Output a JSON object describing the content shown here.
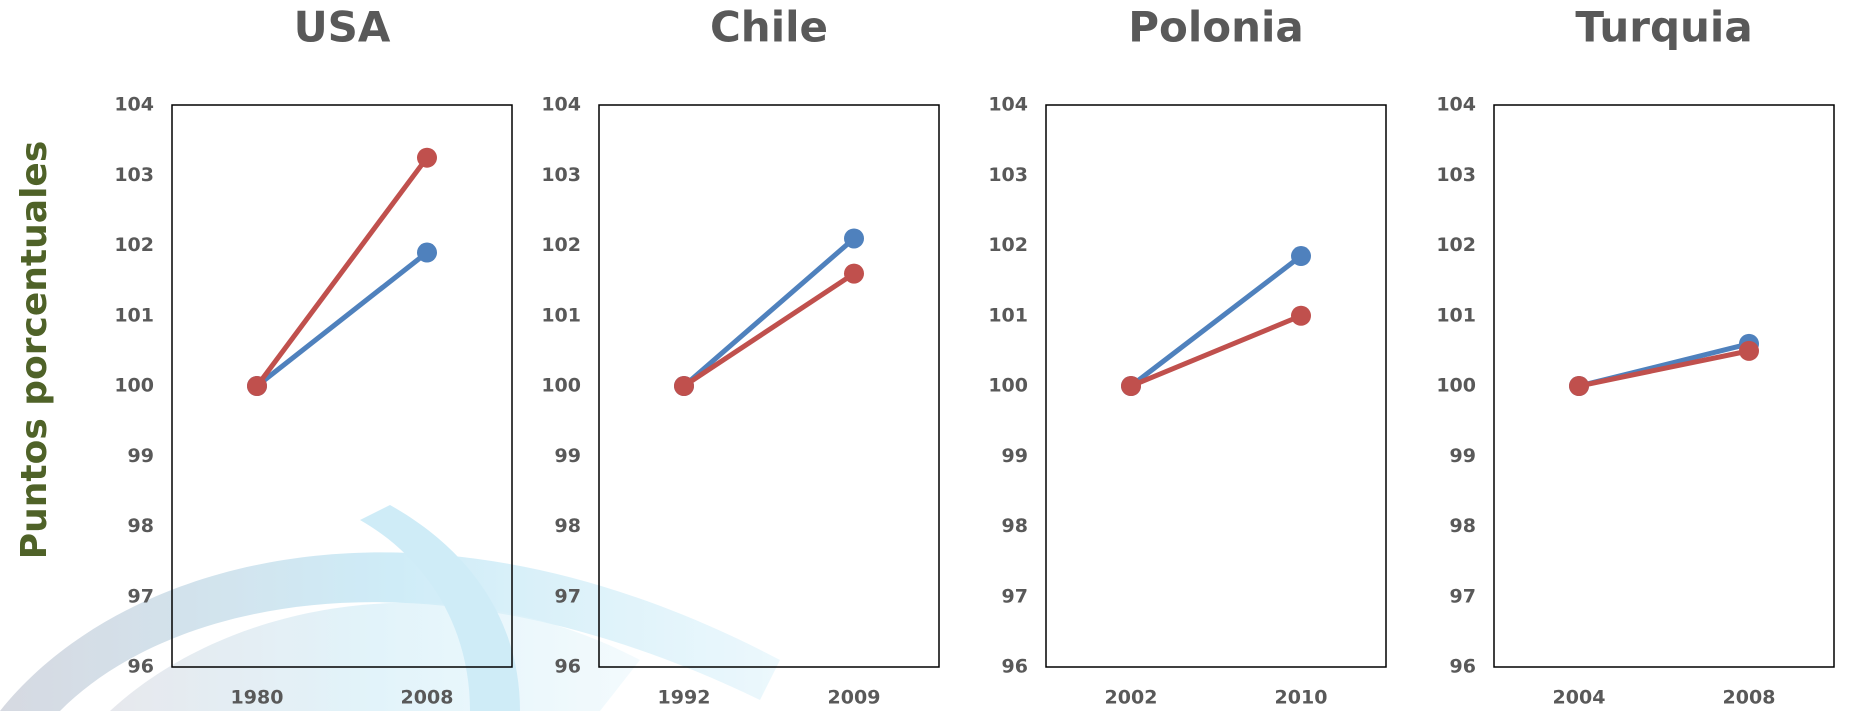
{
  "y_label": "Puntos porcentuales",
  "chart_data": [
    {
      "type": "line",
      "title": "USA",
      "categories": [
        "1980",
        "2008"
      ],
      "series": [
        {
          "color": "#4f81bd",
          "values": [
            100,
            101.9
          ]
        },
        {
          "color": "#c0504d",
          "values": [
            100,
            103.25
          ]
        }
      ],
      "ylim": [
        96,
        104
      ],
      "yticks": [
        96,
        97,
        98,
        99,
        100,
        101,
        102,
        103,
        104
      ],
      "grid": false
    },
    {
      "type": "line",
      "title": "Chile",
      "categories": [
        "1992",
        "2009"
      ],
      "series": [
        {
          "color": "#4f81bd",
          "values": [
            100,
            102.1
          ]
        },
        {
          "color": "#c0504d",
          "values": [
            100,
            101.6
          ]
        }
      ],
      "ylim": [
        96,
        104
      ],
      "yticks": [
        96,
        97,
        98,
        99,
        100,
        101,
        102,
        103,
        104
      ],
      "grid": false
    },
    {
      "type": "line",
      "title": "Polonia",
      "categories": [
        "2002",
        "2010"
      ],
      "series": [
        {
          "color": "#4f81bd",
          "values": [
            100,
            101.85
          ]
        },
        {
          "color": "#c0504d",
          "values": [
            100,
            101.0
          ]
        }
      ],
      "ylim": [
        96,
        104
      ],
      "yticks": [
        96,
        97,
        98,
        99,
        100,
        101,
        102,
        103,
        104
      ],
      "grid": false
    },
    {
      "type": "line",
      "title": "Turquia",
      "categories": [
        "2004",
        "2008"
      ],
      "series": [
        {
          "color": "#4f81bd",
          "values": [
            100,
            100.6
          ]
        },
        {
          "color": "#c0504d",
          "values": [
            100,
            100.5
          ]
        }
      ],
      "ylim": [
        96,
        104
      ],
      "yticks": [
        96,
        97,
        98,
        99,
        100,
        101,
        102,
        103,
        104
      ],
      "grid": false
    }
  ]
}
